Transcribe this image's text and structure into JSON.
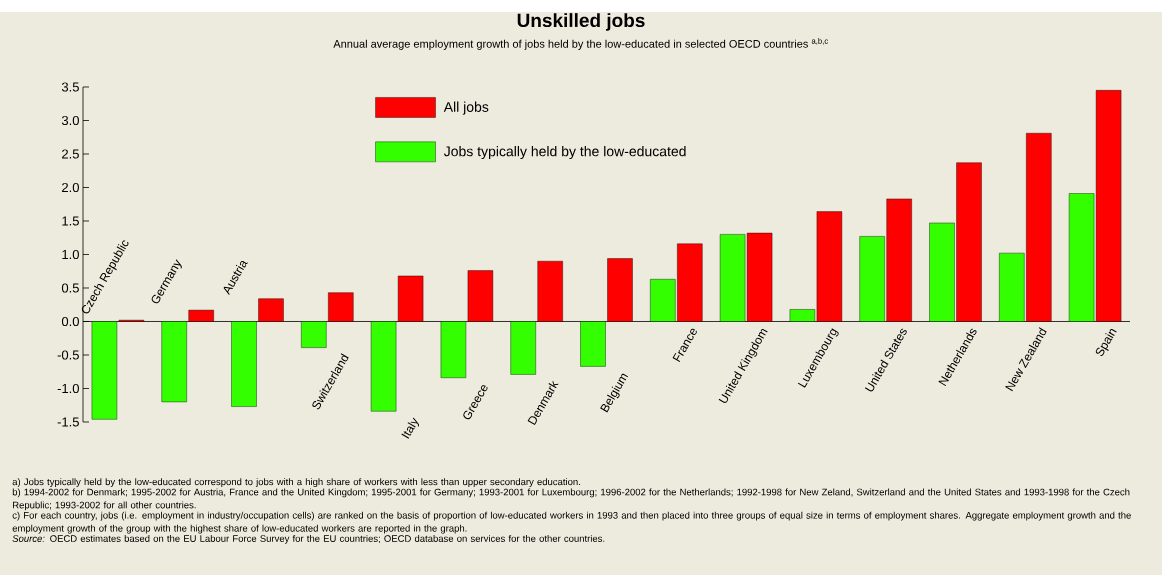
{
  "chart_data": {
    "type": "bar",
    "title": "Unskilled jobs",
    "subtitle": "Annual average employment growth of jobs held by the low-educated in selected OECD countries $^{a,b,c}$",
    "categories": [
      "Czech Republic",
      "Germany",
      "Austria",
      "Switzerland",
      "Italy",
      "Greece",
      "Denmark",
      "Belgium",
      "France",
      "United Kingdom",
      "Luxembourg",
      "United States",
      "Netherlands",
      "New Zealand",
      "Spain"
    ],
    "series": [
      {
        "name": "Jobs typically held by the low-educated",
        "color": "#33ff00",
        "values": [
          -1.46,
          -1.2,
          -1.27,
          -0.39,
          -1.34,
          -0.84,
          -0.79,
          -0.67,
          0.63,
          1.3,
          0.18,
          1.27,
          1.47,
          1.02,
          1.91
        ]
      },
      {
        "name": "All jobs",
        "color": "#ff0000",
        "values": [
          0.02,
          0.17,
          0.34,
          0.43,
          0.68,
          0.76,
          0.9,
          0.94,
          1.16,
          1.32,
          1.64,
          1.83,
          2.37,
          2.81,
          3.45
        ]
      }
    ],
    "ylim": [
      -1.5,
      3.5
    ],
    "yticks": [
      {
        "value": -1.5,
        "label": "-1.5"
      },
      {
        "value": -1,
        "label": "-1.0"
      },
      -0.5,
      {
        "value": 0,
        "label": "0.0"
      },
      0.5,
      {
        "value": 1,
        "label": "1.0"
      },
      1.5,
      {
        "value": 2,
        "label": "2.0"
      },
      2.5,
      {
        "value": 3,
        "label": "3.0"
      },
      3.5
    ],
    "legend": "top",
    "annotations": [
      "a) Jobs typically held by the low-educated correspond to jobs with a high share of workers with less than upper secondary education.",
      "b) 1994-2002 for Denmark; 1995-2002 for Austria, France and the United Kingdom; 1995-2001 for Germany; 1993-2001 for Luxembourg; 1996-2002 for the Netherlands; 1992-1998 for New Zeland, Switzerland and the United States and 1993-1998 for the Czech Republic; 1993-2002 for all other countries.",
      "c) For each country, jobs (i.e. employment in industry/occupation cells) are ranked on the basis of proportion of low-educated workers in 1993 and then placed into three groups of equal size in terms of employment shares. Aggregate employment growth and the employment growth of the group with the highest share of low-educated workers are reported in the graph.",
      "*Source:* OECD estimates based on the EU Labour Force Survey for the EU countries; OECD database on services for the other countries."
    ]
  }
}
